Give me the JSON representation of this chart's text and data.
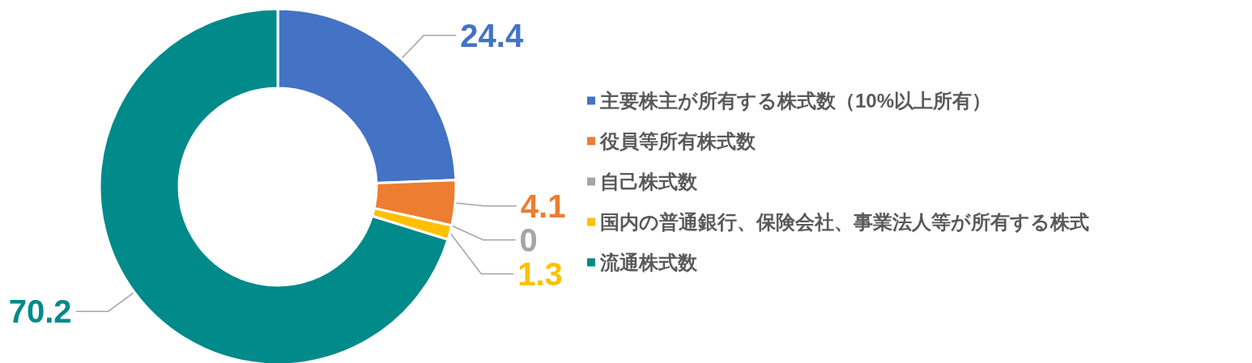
{
  "chart_data": {
    "type": "donut",
    "categories": [
      "主要株主が所有する株式数（10%以上所有）",
      "役員等所有株式数",
      "自己株式数",
      "国内の普通銀行、保険会社、事業法人等が所有する株式",
      "流通株式数"
    ],
    "values": [
      24.4,
      4.1,
      0,
      1.3,
      70.2
    ],
    "colors": [
      "#4472c4",
      "#ed7d31",
      "#a5a5a5",
      "#ffc000",
      "#008a8a"
    ],
    "value_labels": [
      "24.4",
      "4.1",
      "0",
      "1.3",
      "70.2"
    ],
    "legend": "right"
  }
}
